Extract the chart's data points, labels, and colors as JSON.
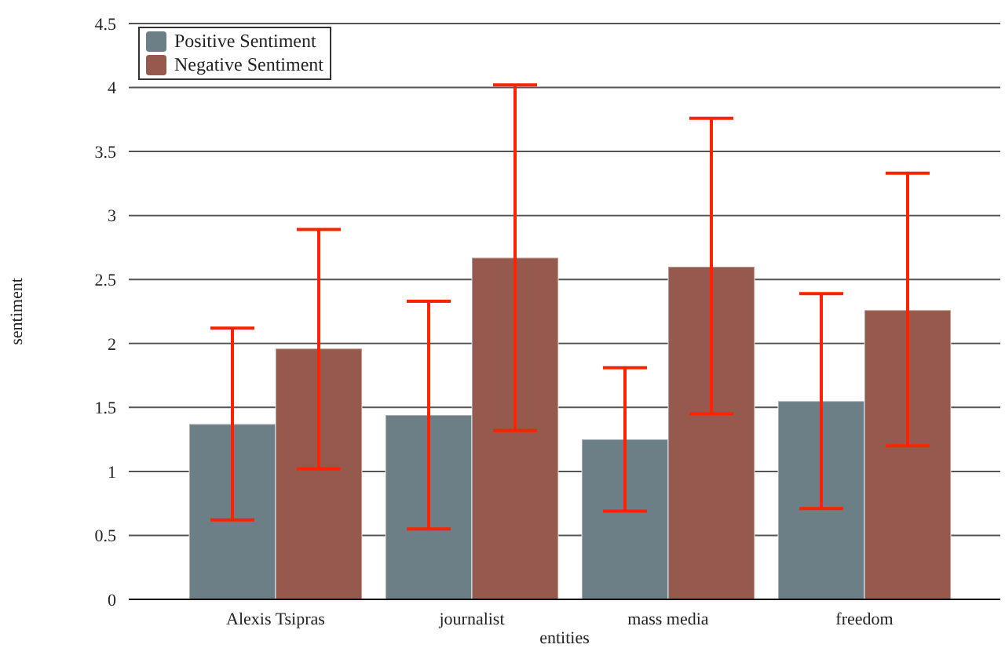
{
  "chart_data": {
    "type": "bar",
    "xlabel": "entities",
    "ylabel": "sentiment",
    "categories": [
      "Alexis Tsipras",
      "journalist",
      "mass media",
      "freedom"
    ],
    "series": [
      {
        "name": "Positive Sentiment",
        "color": "#6d7f86",
        "values": [
          1.37,
          1.44,
          1.25,
          1.55
        ],
        "errors": [
          [
            0.62,
            2.12
          ],
          [
            0.55,
            2.33
          ],
          [
            0.69,
            1.81
          ],
          [
            0.71,
            2.39
          ]
        ]
      },
      {
        "name": "Negative Sentiment",
        "color": "#95594d",
        "values": [
          1.96,
          2.67,
          2.6,
          2.26
        ],
        "errors": [
          [
            1.02,
            2.89
          ],
          [
            1.32,
            4.02
          ],
          [
            1.45,
            3.76
          ],
          [
            1.2,
            3.33
          ]
        ]
      }
    ],
    "ylim": [
      0,
      4.5
    ],
    "yticks": [
      0,
      0.5,
      1,
      1.5,
      2,
      2.5,
      3,
      3.5,
      4,
      4.5
    ],
    "grid": "y",
    "legend": "top left"
  }
}
